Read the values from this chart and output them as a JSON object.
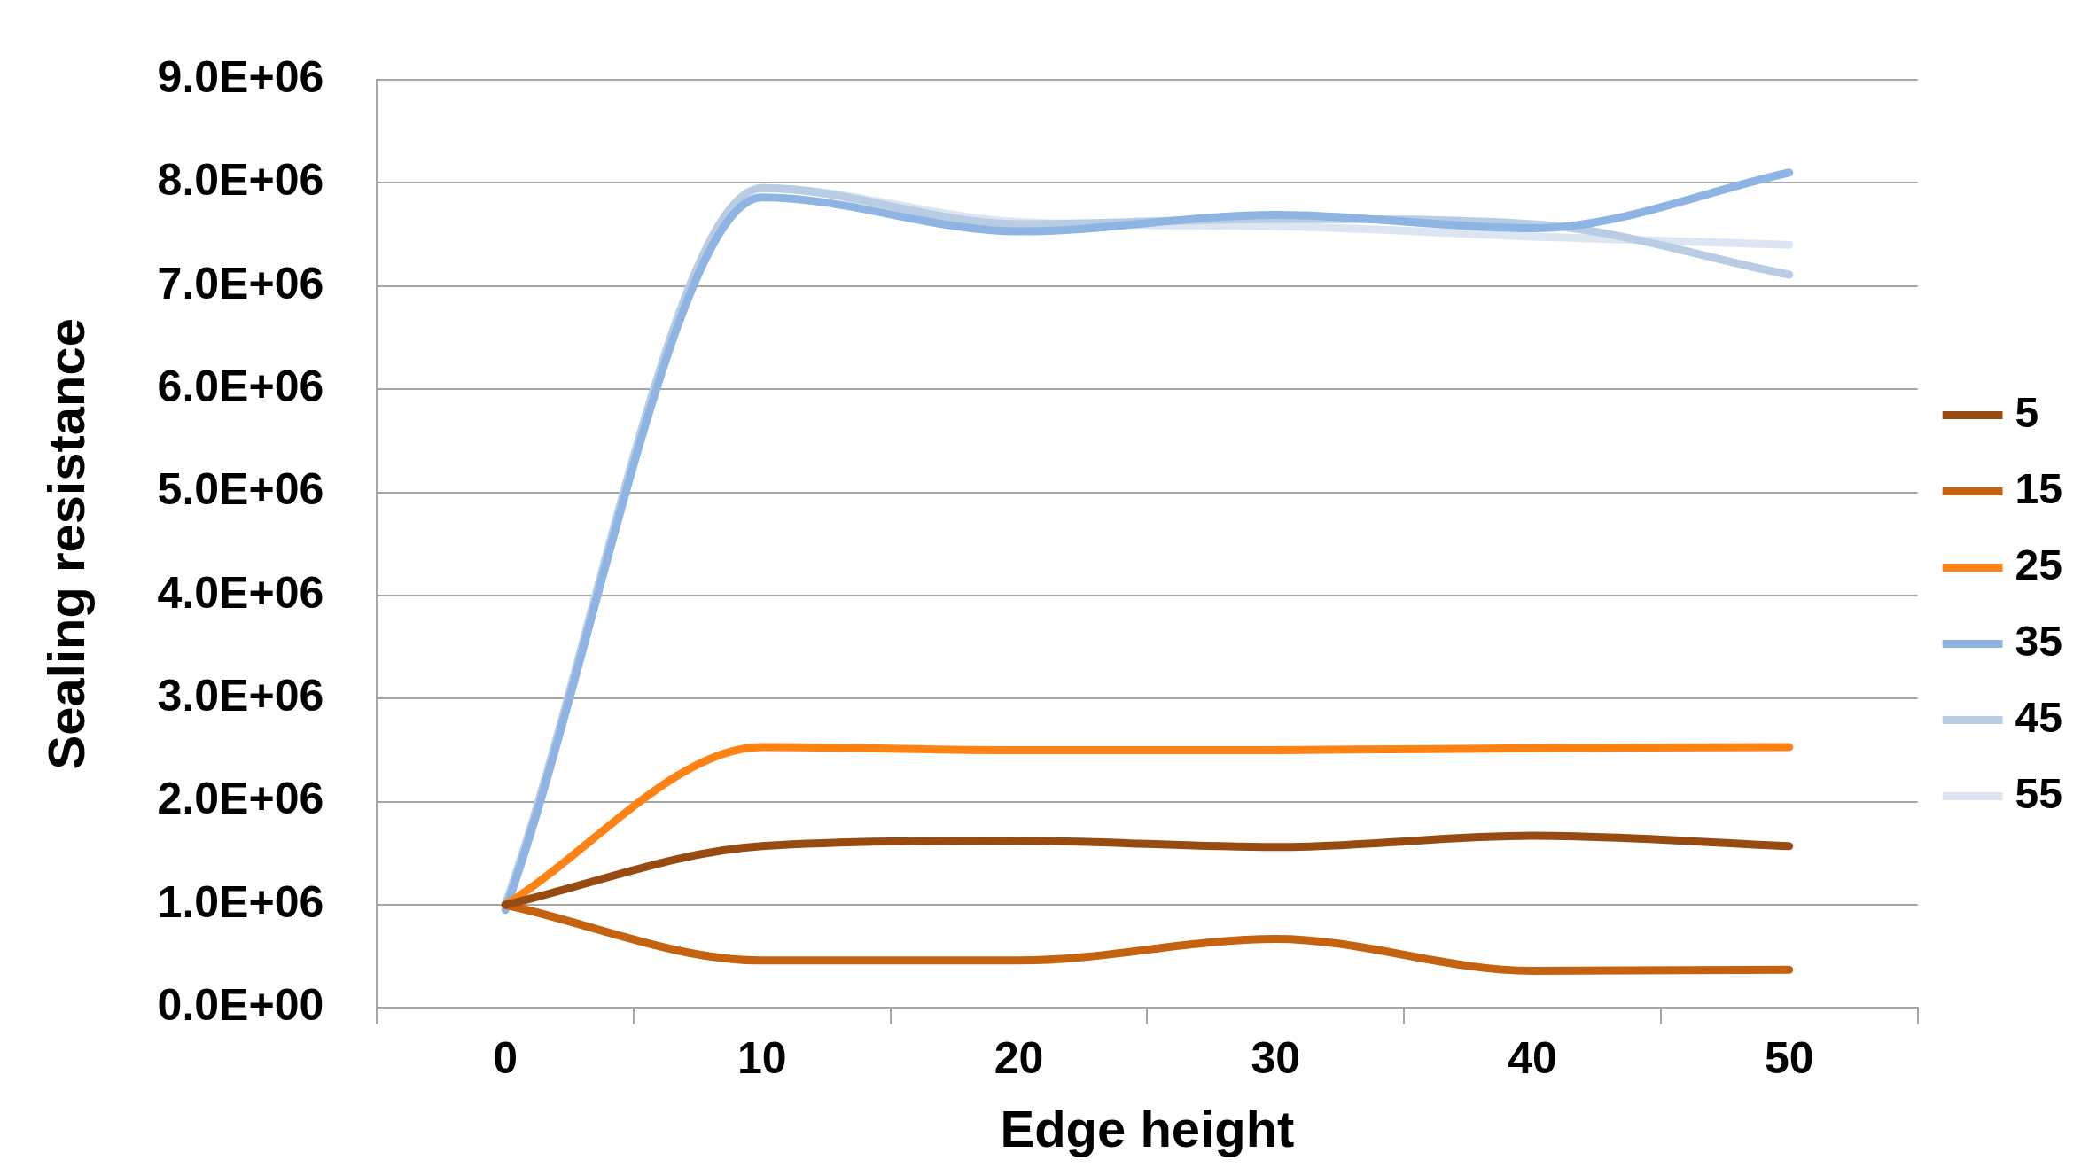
{
  "chart_data": {
    "type": "line",
    "xlabel": "Edge height",
    "ylabel": "Sealing resistance",
    "categories": [
      "0",
      "10",
      "20",
      "30",
      "40",
      "50"
    ],
    "ylim": [
      0,
      9000000
    ],
    "yticks": [
      {
        "value": 0,
        "label": "0.0E+00"
      },
      {
        "value": 1000000,
        "label": "1.0E+06"
      },
      {
        "value": 2000000,
        "label": "2.0E+06"
      },
      {
        "value": 3000000,
        "label": "3.0E+06"
      },
      {
        "value": 4000000,
        "label": "4.0E+06"
      },
      {
        "value": 5000000,
        "label": "5.0E+06"
      },
      {
        "value": 6000000,
        "label": "6.0E+06"
      },
      {
        "value": 7000000,
        "label": "7.0E+06"
      },
      {
        "value": 8000000,
        "label": "8.0E+06"
      },
      {
        "value": 9000000,
        "label": "9.0E+06"
      }
    ],
    "grid": "y",
    "legend": "right",
    "marker": "none",
    "line_style": "solid",
    "series": [
      {
        "name": "5",
        "color": "#974b13",
        "values": [
          1000000,
          1570000,
          1620000,
          1560000,
          1670000,
          1570000
        ]
      },
      {
        "name": "15",
        "color": "#c5620f",
        "values": [
          1000000,
          460000,
          460000,
          670000,
          360000,
          370000
        ]
      },
      {
        "name": "25",
        "color": "#ff8214",
        "values": [
          1000000,
          2530000,
          2500000,
          2500000,
          2520000,
          2530000
        ]
      },
      {
        "name": "35",
        "color": "#8db4e2",
        "values": [
          950000,
          7860000,
          7530000,
          7690000,
          7560000,
          8100000
        ]
      },
      {
        "name": "45",
        "color": "#b8cce4",
        "values": [
          1000000,
          7950000,
          7600000,
          7650000,
          7600000,
          7110000
        ]
      },
      {
        "name": "55",
        "color": "#dce6f2",
        "values": [
          1000000,
          7950000,
          7620000,
          7580000,
          7480000,
          7400000
        ]
      }
    ]
  }
}
